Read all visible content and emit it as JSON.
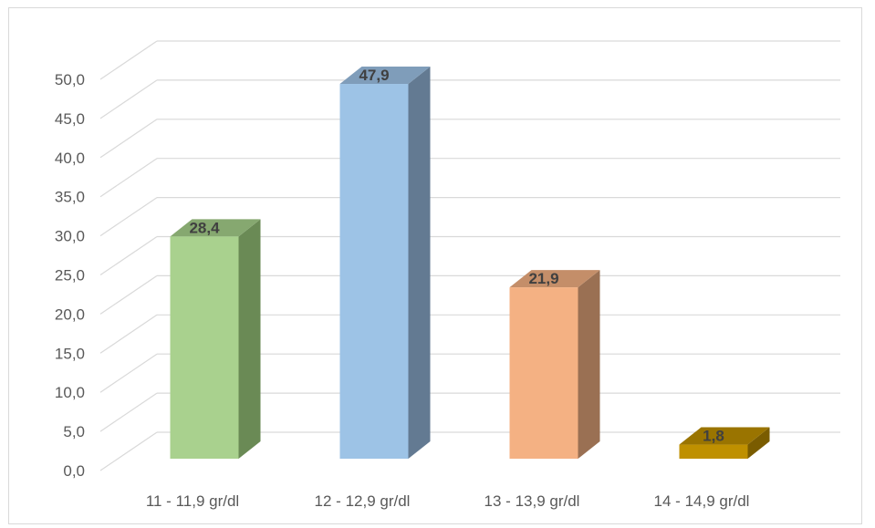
{
  "chart_data": {
    "type": "bar",
    "style": "3d-column",
    "categories": [
      "11 - 11,9 gr/dl",
      "12 - 12,9 gr/dl",
      "13 - 13,9 gr/dl",
      "14 - 14,9 gr/dl"
    ],
    "values": [
      28.4,
      47.9,
      21.9,
      1.8
    ],
    "value_labels": [
      "28,4",
      "47,9",
      "21,9",
      "1,8"
    ],
    "y_ticks": [
      "0,0",
      "5,0",
      "10,0",
      "15,0",
      "20,0",
      "25,0",
      "30,0",
      "35,0",
      "40,0",
      "45,0",
      "50,0"
    ],
    "ylim": [
      0,
      50
    ],
    "grid": true,
    "legend": "none",
    "bar_colors": [
      {
        "front": "#a9d18e",
        "side": "#6a8a55",
        "top": "#86a870"
      },
      {
        "front": "#9dc3e6",
        "side": "#637a92",
        "top": "#7f9dba"
      },
      {
        "front": "#f4b183",
        "side": "#9a7053",
        "top": "#c48e69"
      },
      {
        "front": "#bf9000",
        "side": "#7a5c00",
        "top": "#9a7400"
      }
    ],
    "grid_color": "#d9d9d9",
    "text_color": "#595959",
    "label_color": "#404040"
  }
}
